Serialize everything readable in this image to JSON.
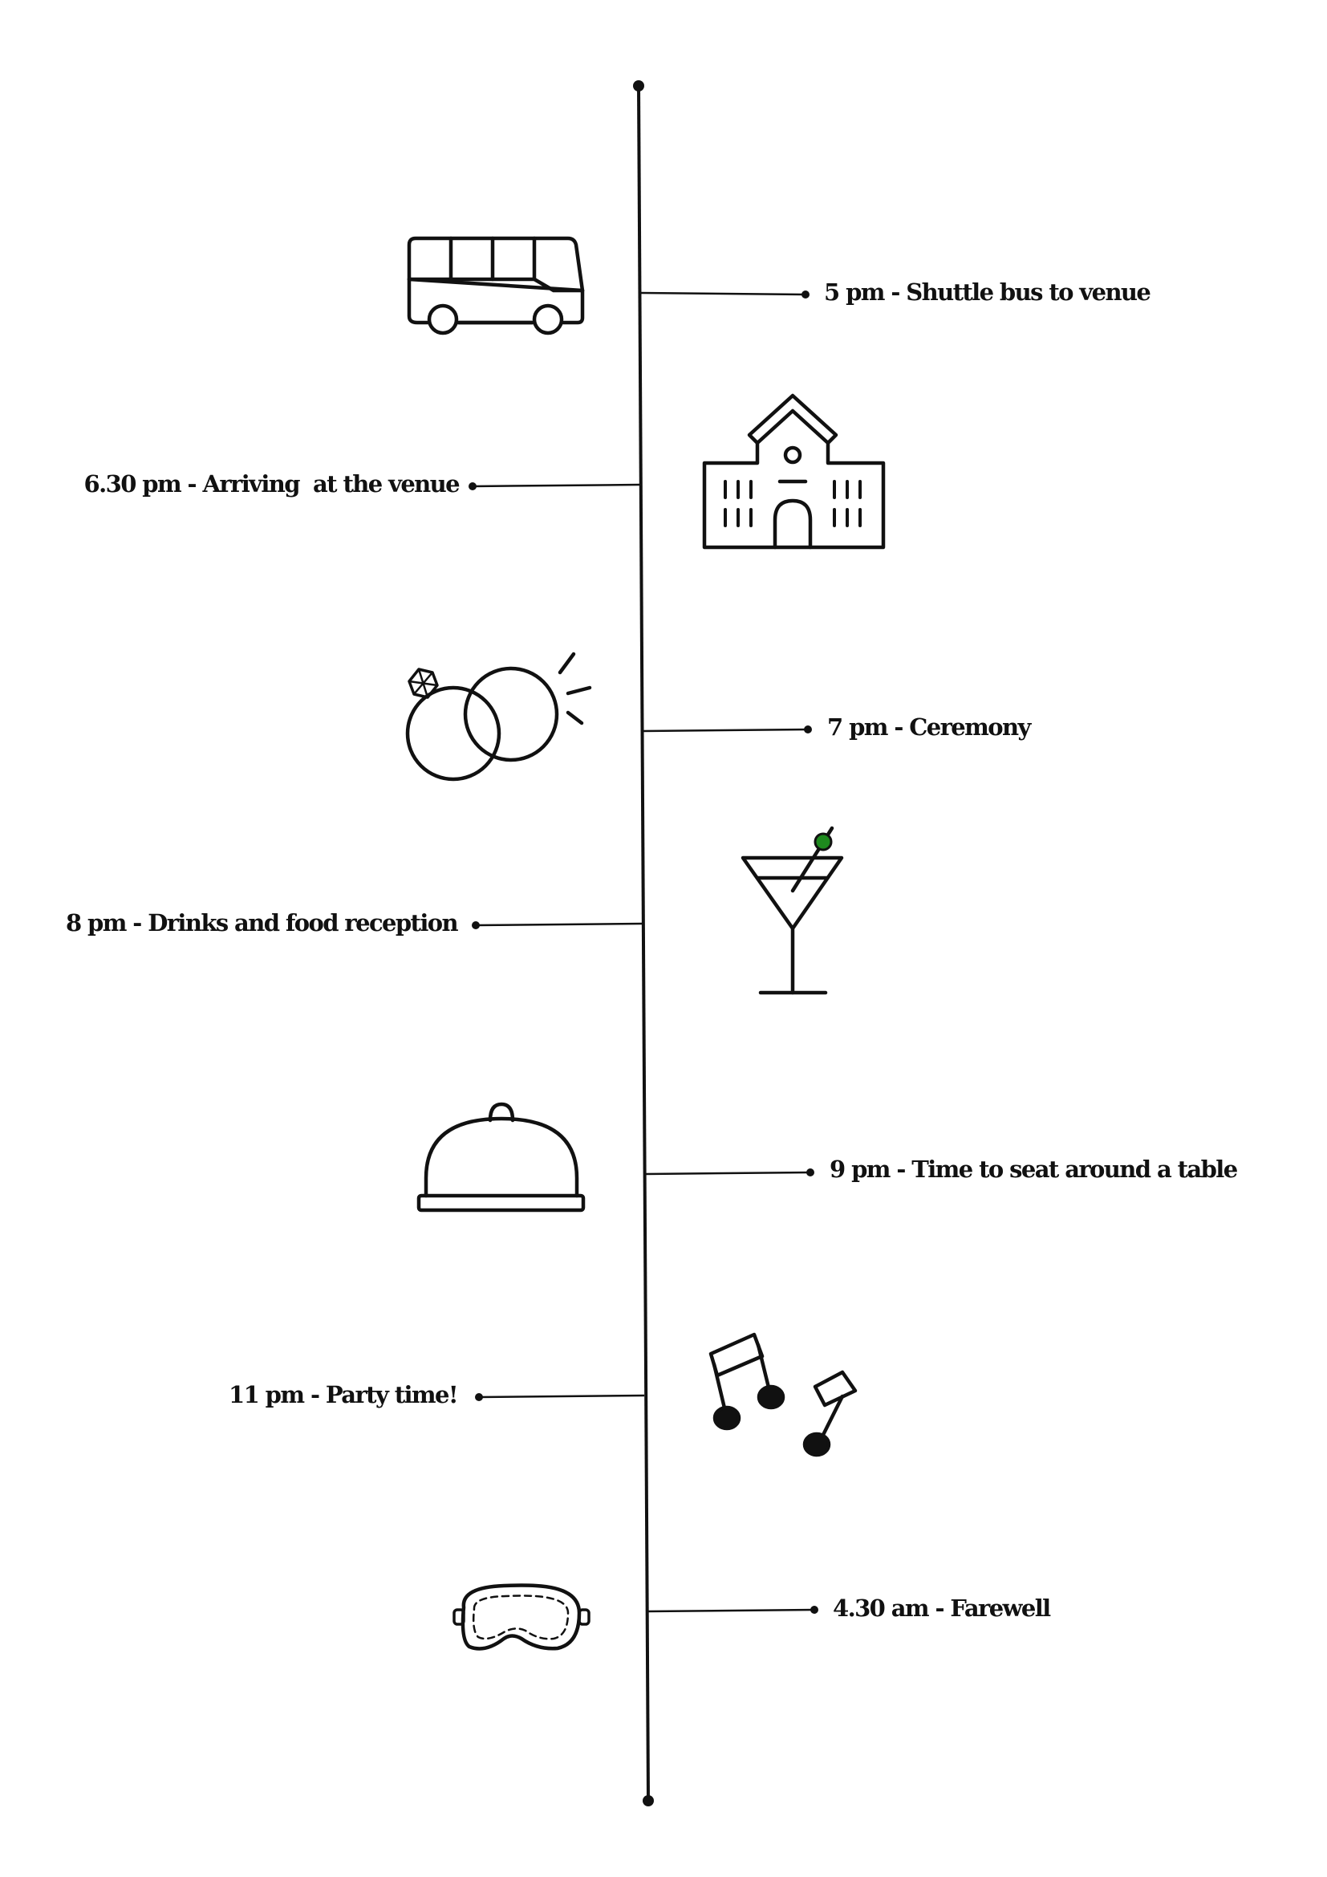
{
  "colors": {
    "line": "#111111",
    "icon_stroke": "#111111",
    "olive": "#1e8a1e",
    "background": "#ffffff"
  },
  "events": [
    {
      "label": "5 pm - Shuttle bus to venue",
      "icon": "bus-icon"
    },
    {
      "label": "6.30 pm - Arriving  at the venue",
      "icon": "venue-building-icon"
    },
    {
      "label": "7 pm - Ceremony",
      "icon": "wedding-rings-icon"
    },
    {
      "label": "8 pm - Drinks and food reception",
      "icon": "cocktail-glass-icon"
    },
    {
      "label": "9 pm - Time to seat around a table",
      "icon": "serving-cloche-icon"
    },
    {
      "label": "11 pm - Party time!",
      "icon": "music-notes-icon"
    },
    {
      "label": "4.30 am - Farewell",
      "icon": "sleep-mask-icon"
    }
  ]
}
